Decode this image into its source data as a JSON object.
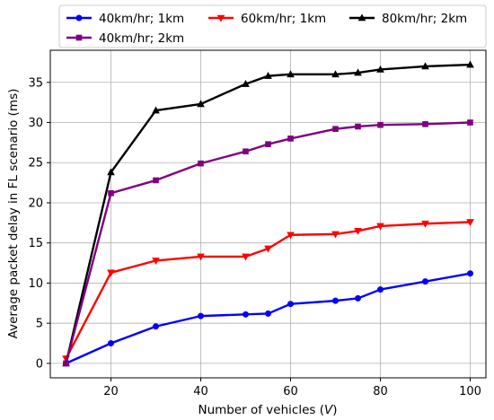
{
  "chart_data": {
    "type": "line",
    "xlabel": "Number of vehicles (",
    "xlabel_var": "V",
    "xlabel_end": ")",
    "ylabel": "Average packet delay in FL scenario (ms)",
    "xlim": [
      6.5,
      103.5
    ],
    "ylim": [
      -1.8,
      39
    ],
    "xticks": [
      20,
      40,
      60,
      80,
      100
    ],
    "yticks": [
      0,
      5,
      10,
      15,
      20,
      25,
      30,
      35
    ],
    "grid": true,
    "legend_position": "top",
    "series": [
      {
        "name": "40km/hr; 1km",
        "color": "#0000ff",
        "marker": "circle",
        "x": [
          10,
          20,
          30,
          40,
          50,
          55,
          60,
          70,
          75,
          80,
          90,
          100
        ],
        "y": [
          0.0,
          2.5,
          4.6,
          5.9,
          6.1,
          6.2,
          7.4,
          7.8,
          8.1,
          9.2,
          10.2,
          11.2
        ]
      },
      {
        "name": "60km/hr; 1km",
        "color": "#ff0000",
        "marker": "triangle-down",
        "x": [
          10,
          20,
          30,
          40,
          50,
          55,
          60,
          70,
          75,
          80,
          90,
          100
        ],
        "y": [
          0.6,
          11.3,
          12.8,
          13.3,
          13.3,
          14.3,
          16.0,
          16.1,
          16.5,
          17.1,
          17.4,
          17.6
        ]
      },
      {
        "name": "80km/hr; 2km",
        "color": "#000000",
        "marker": "triangle-up",
        "x": [
          10,
          20,
          30,
          40,
          50,
          55,
          60,
          70,
          75,
          80,
          90,
          100
        ],
        "y": [
          0.0,
          23.8,
          31.5,
          32.3,
          34.8,
          35.8,
          36.0,
          36.0,
          36.2,
          36.6,
          37.0,
          37.2
        ]
      },
      {
        "name": "40km/hr; 2km",
        "color": "#800080",
        "marker": "square",
        "x": [
          10,
          20,
          30,
          40,
          50,
          55,
          60,
          70,
          75,
          80,
          90,
          100
        ],
        "y": [
          0.0,
          21.2,
          22.8,
          24.9,
          26.4,
          27.3,
          28.0,
          29.2,
          29.5,
          29.7,
          29.8,
          30.0
        ]
      }
    ]
  }
}
